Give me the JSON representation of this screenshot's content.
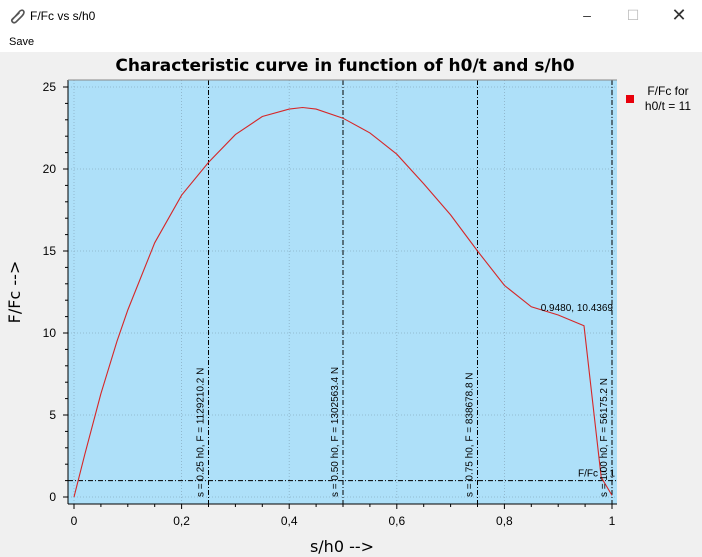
{
  "window": {
    "title": "F/Fc vs s/h0",
    "icon": "paperclip-icon"
  },
  "menu": {
    "save_label": "Save"
  },
  "colors": {
    "plot_background": "#aee0f9",
    "curve": "#d62728",
    "legend_marker": "#e8000b"
  },
  "chart_data": {
    "type": "line",
    "title": "Characteristic curve in function of h0/t and s/h0",
    "xlabel": "s/h0 -->",
    "ylabel": "F/Fc -->",
    "xlim": [
      0,
      1
    ],
    "ylim": [
      0,
      25
    ],
    "x_ticks": [
      0,
      0.2,
      0.4,
      0.6,
      0.8,
      1
    ],
    "x_tick_labels": [
      "0",
      "0,2",
      "0,4",
      "0,6",
      "0,8",
      "1"
    ],
    "y_ticks": [
      0,
      5,
      10,
      15,
      20,
      25
    ],
    "y_tick_labels": [
      "0",
      "5",
      "10",
      "15",
      "20",
      "25"
    ],
    "grid": true,
    "legend": {
      "position": "right",
      "entries": [
        "F/Fc for",
        "h0/t = 11"
      ]
    },
    "series": [
      {
        "name": "F/Fc for h0/t = 11",
        "x": [
          0,
          0.02,
          0.05,
          0.08,
          0.1,
          0.15,
          0.2,
          0.25,
          0.3,
          0.35,
          0.4,
          0.425,
          0.45,
          0.5,
          0.55,
          0.6,
          0.65,
          0.7,
          0.75,
          0.8,
          0.85,
          0.9,
          0.948,
          0.98,
          1.0
        ],
        "y": [
          0,
          2.6,
          6.3,
          9.5,
          11.4,
          15.5,
          18.4,
          20.4,
          22.1,
          23.2,
          23.65,
          23.75,
          23.65,
          23.1,
          22.2,
          20.9,
          19.1,
          17.2,
          15.0,
          12.9,
          11.6,
          11.1,
          10.4369,
          1.2,
          0.1
        ]
      }
    ],
    "vertical_markers": [
      {
        "x": 0.25,
        "label": "s = 0.25 h0, F = 1129210.2 N"
      },
      {
        "x": 0.5,
        "label": "s = 0.50 h0, F = 1302563.4 N"
      },
      {
        "x": 0.75,
        "label": "s = 0.75 h0, F = 838678.8 N"
      },
      {
        "x": 1.0,
        "label": "s = 1.00 h0, F = 56175.2 N"
      }
    ],
    "horizontal_marker": {
      "y": 1,
      "label": "F/Fc = 1"
    },
    "annotations": [
      {
        "x": 0.948,
        "y": 10.4369,
        "label": "0.9480, 10.4369"
      }
    ]
  }
}
